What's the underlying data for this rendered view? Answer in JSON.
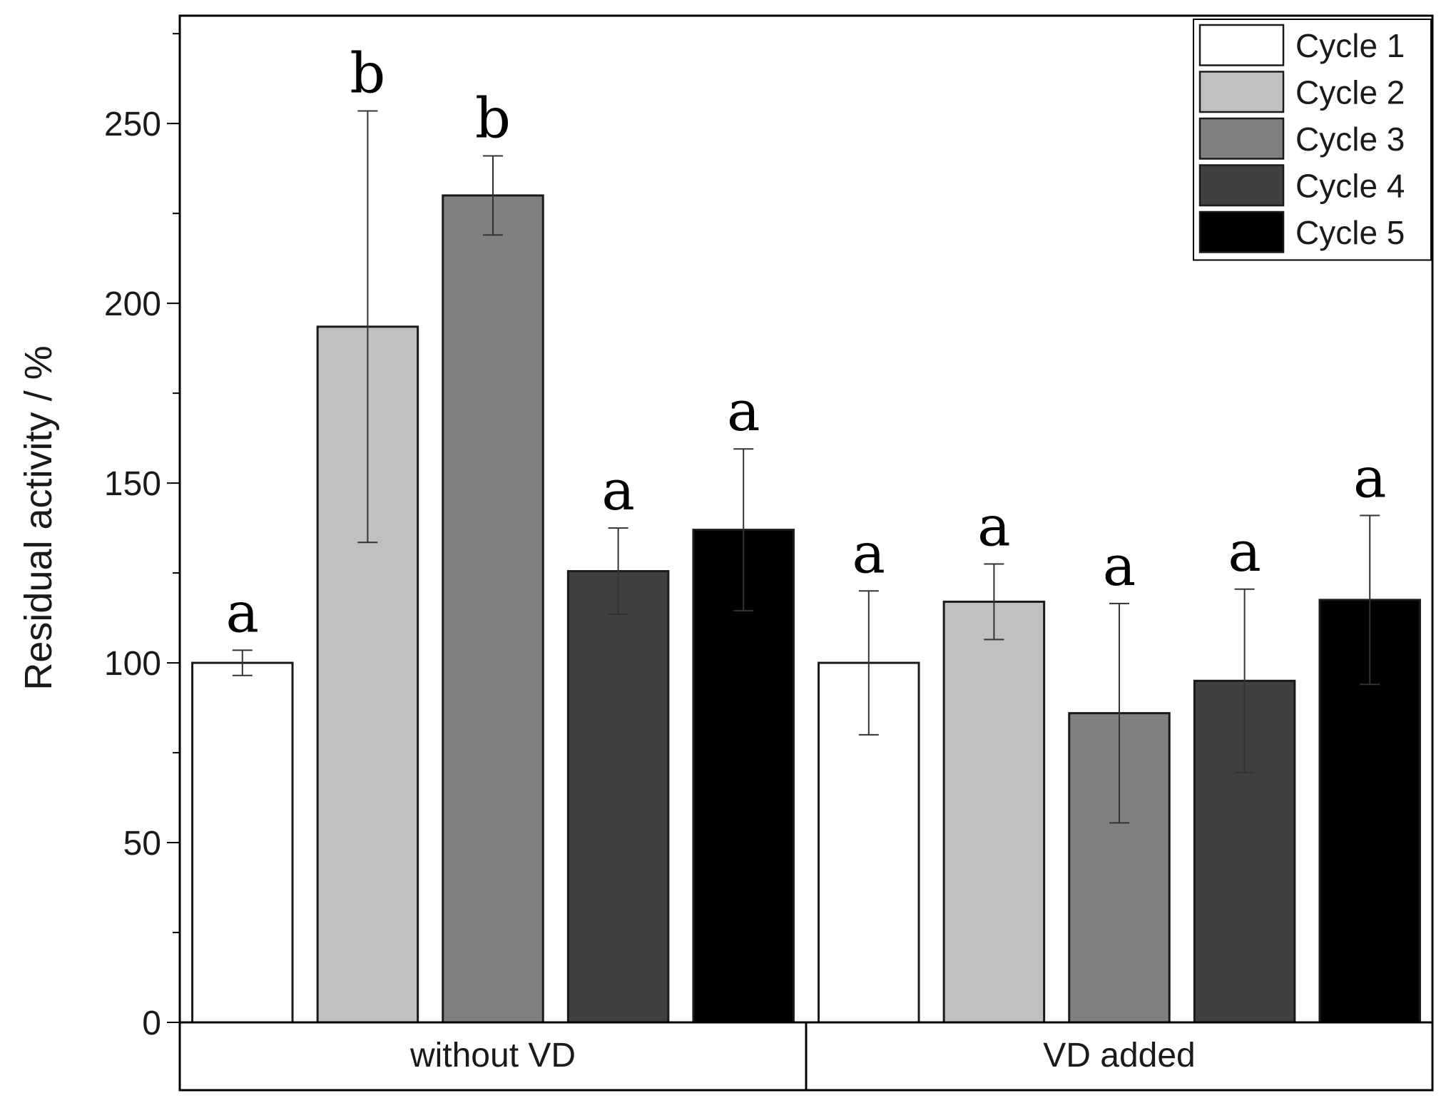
{
  "chart_data": {
    "type": "bar",
    "title": "",
    "xlabel": "",
    "ylabel": "Residual activity / %",
    "ylim": [
      0,
      280
    ],
    "yticks": [
      0,
      50,
      100,
      150,
      200,
      250
    ],
    "groups": [
      "without VD",
      "VD added"
    ],
    "legend_position": "top-right",
    "series": [
      {
        "name": "Cycle 1",
        "color": "#ffffff",
        "values": [
          100,
          100
        ],
        "errors": [
          3.5,
          20
        ],
        "labels": [
          "a",
          "a"
        ]
      },
      {
        "name": "Cycle 2",
        "color": "#c0c0c0",
        "values": [
          193.5,
          117
        ],
        "errors": [
          60,
          10.5
        ],
        "labels": [
          "b",
          "a"
        ]
      },
      {
        "name": "Cycle 3",
        "color": "#808080",
        "values": [
          230,
          86
        ],
        "errors": [
          11,
          30.5
        ],
        "labels": [
          "b",
          "a"
        ]
      },
      {
        "name": "Cycle 4",
        "color": "#404040",
        "values": [
          125.5,
          95
        ],
        "errors": [
          12,
          25.5
        ],
        "labels": [
          "a",
          "a"
        ]
      },
      {
        "name": "Cycle 5",
        "color": "#000000",
        "values": [
          137,
          117.5
        ],
        "errors": [
          22.5,
          23.5
        ],
        "labels": [
          "a",
          "a"
        ]
      }
    ]
  }
}
